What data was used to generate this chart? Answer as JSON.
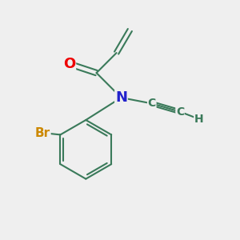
{
  "background_color": "#efefef",
  "bond_color": "#3a7a5a",
  "atom_colors": {
    "O": "#ee0000",
    "N": "#2222cc",
    "Br": "#cc8800",
    "C": "#3a7a5a",
    "H": "#3a7a5a"
  },
  "lw": 1.5
}
